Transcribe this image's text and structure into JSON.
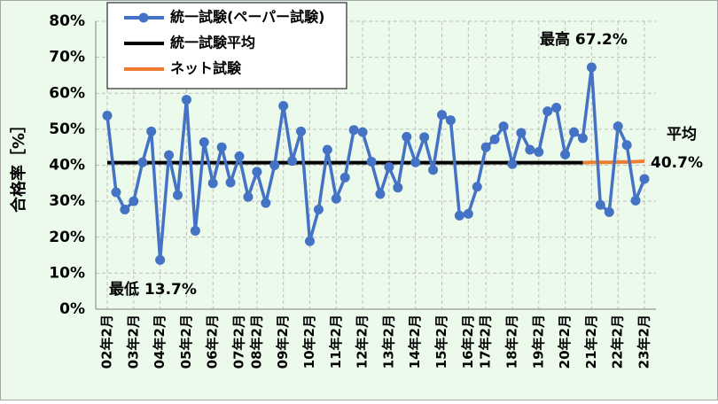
{
  "chart_data": {
    "type": "line",
    "y_label": "合格率［%］",
    "categories": [
      "02年2月",
      null,
      null,
      "03年2月",
      null,
      null,
      "04年2月",
      null,
      null,
      "05年2月",
      null,
      null,
      "06年2月",
      null,
      null,
      "07年2月",
      null,
      "08年2月",
      null,
      null,
      "09年2月",
      null,
      null,
      "10年2月",
      null,
      null,
      "11年2月",
      null,
      null,
      "12年2月",
      null,
      null,
      "13年2月",
      null,
      null,
      "14年2月",
      null,
      null,
      "15年2月",
      null,
      null,
      "16年2月",
      null,
      "17年2月",
      null,
      null,
      "18年2月",
      null,
      null,
      "19年2月",
      null,
      null,
      "20年2月",
      null,
      null,
      "21年2月",
      null,
      null,
      "22年2月",
      null,
      null,
      "23年2月"
    ],
    "series": [
      {
        "name": "統一試験(ペーパー試験)",
        "color": "#4472c4",
        "markers": true,
        "values": [
          53.8,
          32.5,
          27.7,
          30,
          40.8,
          49.4,
          13.7,
          42.8,
          31.7,
          58.2,
          21.8,
          46.4,
          35,
          45,
          35.2,
          42.5,
          31.2,
          38.2,
          29.5,
          40,
          56.5,
          41.2,
          49.4,
          18.9,
          27.7,
          44.3,
          30.7,
          36.6,
          49.8,
          49.2,
          41,
          32,
          39.5,
          33.8,
          47.9,
          40.8,
          47.8,
          38.7,
          54,
          52.5,
          26,
          26.5,
          34,
          45,
          47.2,
          50.8,
          40.3,
          49,
          44.3,
          43.7,
          55,
          56,
          43,
          49.2,
          47.5,
          67.2,
          29,
          27,
          50.8,
          45.6,
          30.2,
          36.2
        ]
      },
      {
        "name": "統一試験平均",
        "color": "#000000",
        "markers": false,
        "values": [
          40.7,
          40.7,
          40.7,
          40.7,
          40.7,
          40.7,
          40.7,
          40.7,
          40.7,
          40.7,
          40.7,
          40.7,
          40.7,
          40.7,
          40.7,
          40.7,
          40.7,
          40.7,
          40.7,
          40.7,
          40.7,
          40.7,
          40.7,
          40.7,
          40.7,
          40.7,
          40.7,
          40.7,
          40.7,
          40.7,
          40.7,
          40.7,
          40.7,
          40.7,
          40.7,
          40.7,
          40.7,
          40.7,
          40.7,
          40.7,
          40.7,
          40.7,
          40.7,
          40.7,
          40.7,
          40.7,
          40.7,
          40.7,
          40.7,
          40.7,
          40.7,
          40.7,
          40.7,
          40.7,
          40.7,
          null,
          null,
          null,
          null,
          null,
          null,
          null
        ]
      },
      {
        "name": "ネット試験",
        "color": "#ed7d31",
        "markers": false,
        "values": [
          null,
          null,
          null,
          null,
          null,
          null,
          null,
          null,
          null,
          null,
          null,
          null,
          null,
          null,
          null,
          null,
          null,
          null,
          null,
          null,
          null,
          null,
          null,
          null,
          null,
          null,
          null,
          null,
          null,
          null,
          null,
          null,
          null,
          null,
          null,
          null,
          null,
          null,
          null,
          null,
          null,
          null,
          null,
          null,
          null,
          null,
          null,
          null,
          null,
          null,
          null,
          null,
          null,
          null,
          40.7,
          40.8,
          40.8,
          40.8,
          40.9,
          40.9,
          41,
          41.1
        ]
      }
    ],
    "ylim": [
      0,
      80
    ],
    "yticks": [
      {
        "value": 0,
        "label": "0%"
      },
      {
        "value": 10,
        "label": "10%"
      },
      {
        "value": 20,
        "label": "20%"
      },
      {
        "value": 30,
        "label": "30%"
      },
      {
        "value": 40,
        "label": "40%"
      },
      {
        "value": 50,
        "label": "50%"
      },
      {
        "value": 60,
        "label": "60%"
      },
      {
        "value": 70,
        "label": "70%"
      },
      {
        "value": 80,
        "label": "80%"
      }
    ],
    "grid": true,
    "annotations": [
      "最高 67.2%",
      "最低 13.7%",
      "平均",
      "40.7%"
    ]
  }
}
